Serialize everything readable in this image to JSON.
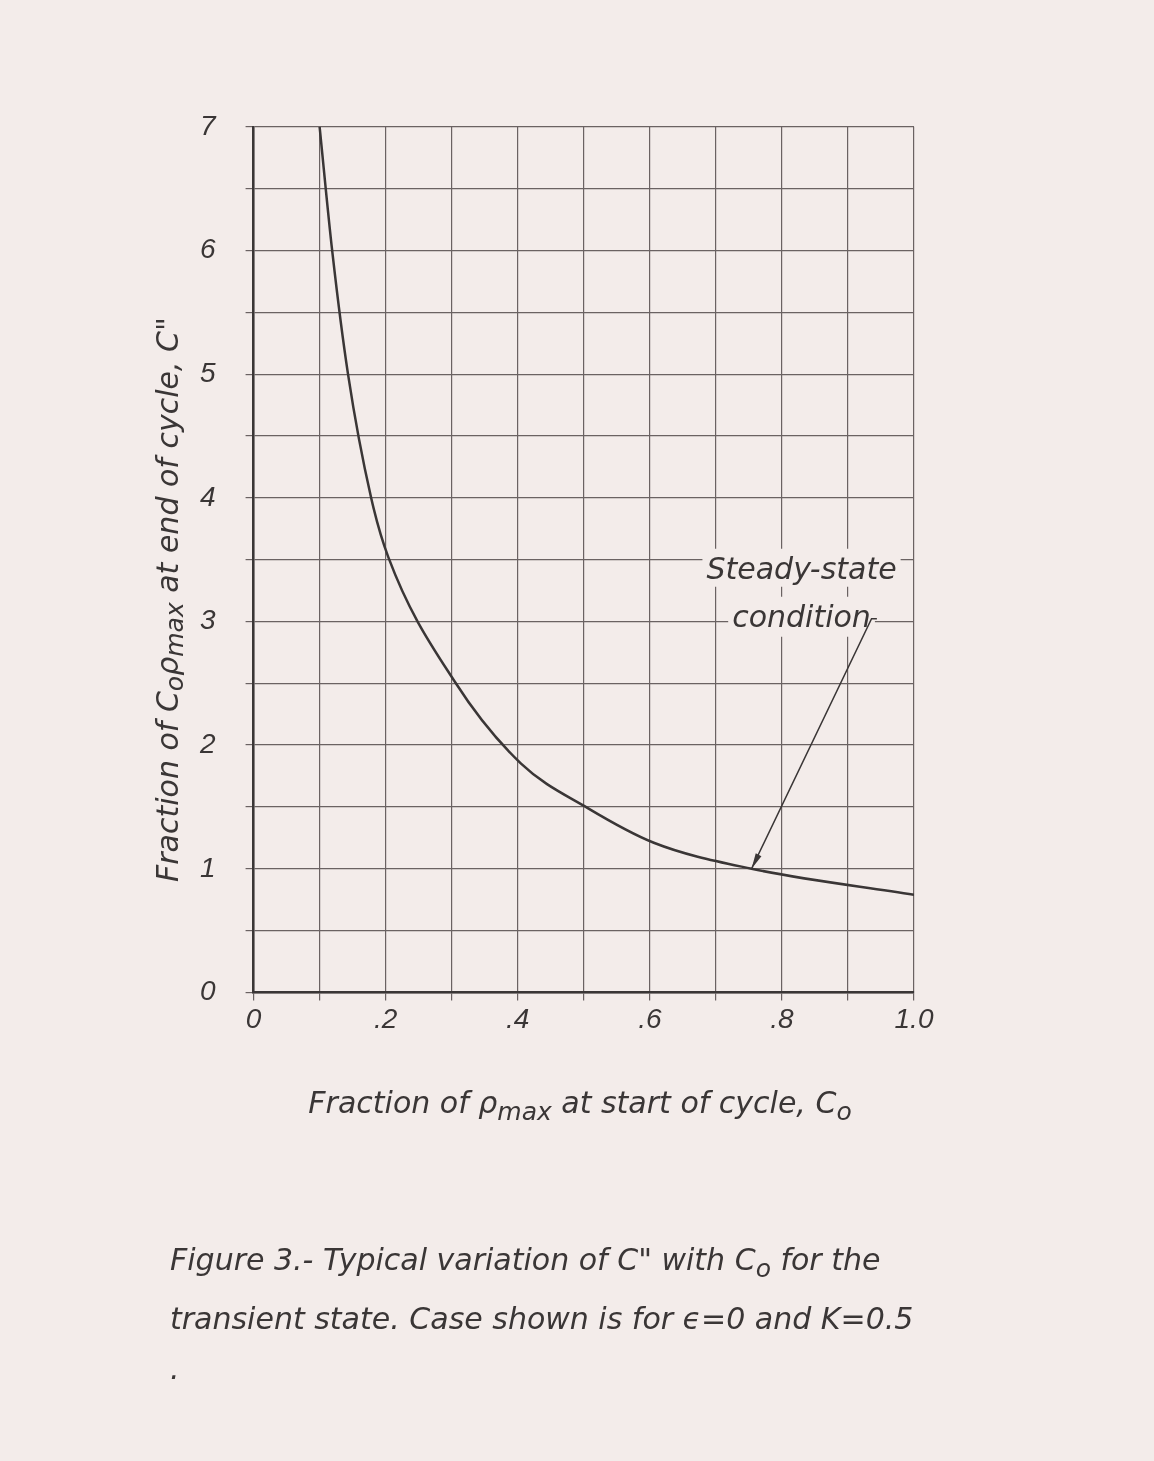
{
  "chart_data": {
    "type": "line",
    "xlabel": "Fraction of ρ$_{max}$ at start of cycle, C$_{o}$",
    "ylabel": "Fraction of C$_{o}$ρ$_{max}$ at end of cycle, C\"",
    "x": [
      0.1,
      0.119,
      0.143,
      0.178,
      0.204,
      0.305,
      0.405,
      0.506,
      0.606,
      0.754,
      1.0
    ],
    "series": [
      {
        "color": "#3a3636",
        "values": [
          7.0,
          6.0,
          5.0,
          4.0,
          3.52,
          2.51,
          1.85,
          1.49,
          1.21,
          1.0,
          0.79
        ]
      }
    ],
    "xlim": [
      0,
      1.0
    ],
    "ylim": [
      0,
      7
    ],
    "xticks": [
      0,
      {
        "value": 0.1,
        "label": null
      },
      {
        "value": 0.2,
        "label": ".2"
      },
      {
        "value": 0.3,
        "label": null
      },
      {
        "value": 0.4,
        "label": ".4"
      },
      {
        "value": 0.5,
        "label": null
      },
      {
        "value": 0.6,
        "label": ".6"
      },
      {
        "value": 0.7,
        "label": null
      },
      {
        "value": 0.8,
        "label": ".8"
      },
      {
        "value": 0.9,
        "label": null
      },
      {
        "value": 1.0,
        "label": "1.0"
      }
    ],
    "yticks": [
      0,
      {
        "value": 0.5,
        "label": null
      },
      1,
      {
        "value": 1.5,
        "label": null
      },
      2,
      {
        "value": 2.5,
        "label": null
      },
      3,
      {
        "value": 3.5,
        "label": null
      },
      4,
      {
        "value": 4.5,
        "label": null
      },
      5,
      {
        "value": 5.5,
        "label": null
      },
      6,
      {
        "value": 6.5,
        "label": null
      },
      7
    ],
    "grid": true,
    "legend": false,
    "marker": "none",
    "annotations": [
      {
        "text": "Steady-state condition",
        "x": 0.754,
        "y": 1.0
      },
      "Figure 3.- Typical variation of C\" with C$_{o}$ for the transient state. Case shown is for ϵ=0 and K=0.5 ."
    ]
  }
}
